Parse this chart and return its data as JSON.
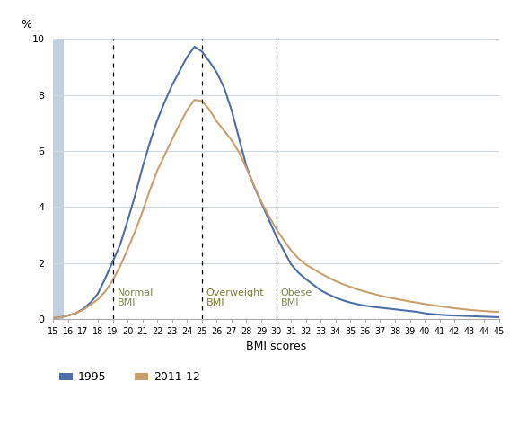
{
  "title": "",
  "ylabel": "%",
  "xlabel": "BMI scores",
  "xlim": [
    15,
    45
  ],
  "ylim": [
    0,
    10
  ],
  "yticks": [
    0,
    2,
    4,
    6,
    8,
    10
  ],
  "xticks": [
    15,
    16,
    17,
    18,
    19,
    20,
    21,
    22,
    23,
    24,
    25,
    26,
    27,
    28,
    29,
    30,
    31,
    32,
    33,
    34,
    35,
    36,
    37,
    38,
    39,
    40,
    41,
    42,
    43,
    44,
    45
  ],
  "vline_positions": [
    19,
    25,
    30
  ],
  "vline_labels": [
    "Normal\nBMI",
    "Overweight\nBMI",
    "Obese\nBMI"
  ],
  "vline_label_colors": [
    "#7a8a50",
    "#7a7a30",
    "#7a8a50"
  ],
  "color_1995": "#4f6ea8",
  "color_2011": "#c8a06e",
  "shaded_rect_xmax": 15.7,
  "shaded_rect_color": "#b8c9d9",
  "grid_color": "#d0d8e0",
  "background_color": "#ffffff",
  "legend_label_1995": "1995",
  "legend_label_2011": "2011-12",
  "x_1995": [
    15,
    15.5,
    16,
    16.5,
    17,
    17.5,
    18,
    18.5,
    19,
    19.5,
    20,
    20.5,
    21,
    21.5,
    22,
    22.5,
    23,
    23.5,
    24,
    24.5,
    25,
    25.5,
    26,
    26.5,
    27,
    27.5,
    28,
    28.5,
    29,
    29.5,
    30,
    30.5,
    31,
    31.5,
    32,
    32.5,
    33,
    33.5,
    34,
    34.5,
    35,
    35.5,
    36,
    36.5,
    37,
    37.5,
    38,
    38.5,
    39,
    39.5,
    40,
    40.5,
    41,
    41.5,
    42,
    42.5,
    43,
    43.5,
    44,
    44.5,
    45
  ],
  "y_1995": [
    0.03,
    0.06,
    0.12,
    0.2,
    0.35,
    0.58,
    0.9,
    1.45,
    2.05,
    2.65,
    3.5,
    4.4,
    5.4,
    6.3,
    7.1,
    7.75,
    8.35,
    8.85,
    9.35,
    9.72,
    9.55,
    9.2,
    8.8,
    8.25,
    7.45,
    6.45,
    5.45,
    4.75,
    4.15,
    3.55,
    2.95,
    2.45,
    1.95,
    1.65,
    1.42,
    1.22,
    1.02,
    0.88,
    0.76,
    0.66,
    0.58,
    0.52,
    0.47,
    0.43,
    0.4,
    0.37,
    0.34,
    0.31,
    0.28,
    0.25,
    0.2,
    0.17,
    0.15,
    0.13,
    0.12,
    0.11,
    0.1,
    0.09,
    0.08,
    0.07,
    0.06
  ],
  "x_2011": [
    15,
    15.5,
    16,
    16.5,
    17,
    17.5,
    18,
    18.5,
    19,
    19.5,
    20,
    20.5,
    21,
    21.5,
    22,
    22.5,
    23,
    23.5,
    24,
    24.5,
    25,
    25.5,
    26,
    26.5,
    27,
    27.5,
    28,
    28.5,
    29,
    29.5,
    30,
    30.5,
    31,
    31.5,
    32,
    32.5,
    33,
    33.5,
    34,
    34.5,
    35,
    35.5,
    36,
    36.5,
    37,
    37.5,
    38,
    38.5,
    39,
    39.5,
    40,
    40.5,
    41,
    41.5,
    42,
    42.5,
    43,
    43.5,
    44,
    44.5,
    45
  ],
  "y_2011": [
    0.03,
    0.06,
    0.12,
    0.2,
    0.32,
    0.5,
    0.7,
    0.98,
    1.38,
    1.88,
    2.48,
    3.12,
    3.82,
    4.6,
    5.3,
    5.85,
    6.42,
    6.95,
    7.45,
    7.82,
    7.78,
    7.48,
    7.05,
    6.72,
    6.38,
    5.95,
    5.38,
    4.78,
    4.18,
    3.68,
    3.22,
    2.82,
    2.45,
    2.16,
    1.94,
    1.78,
    1.62,
    1.48,
    1.35,
    1.24,
    1.14,
    1.05,
    0.97,
    0.9,
    0.83,
    0.77,
    0.72,
    0.67,
    0.62,
    0.58,
    0.53,
    0.49,
    0.45,
    0.42,
    0.38,
    0.35,
    0.32,
    0.3,
    0.28,
    0.26,
    0.25
  ]
}
